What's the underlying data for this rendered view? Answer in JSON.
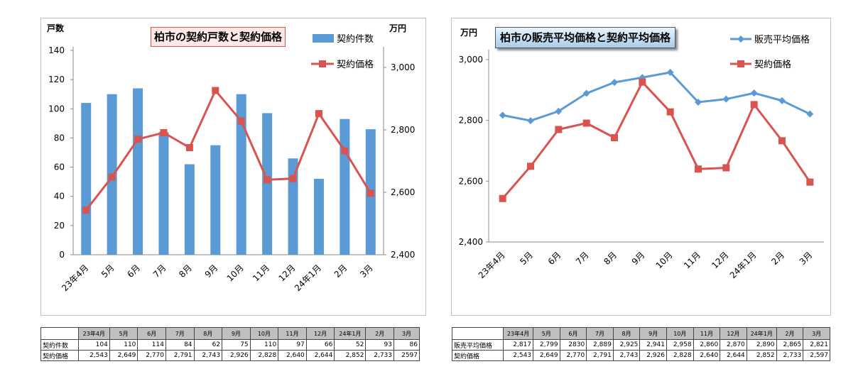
{
  "chart_data": [
    {
      "type": "bar+line",
      "title": "柏市の契約戸数と契約価格",
      "categories": [
        "23年4月",
        "5月",
        "6月",
        "7月",
        "8月",
        "9月",
        "10月",
        "11月",
        "12月",
        "24年1月",
        "2月",
        "3月"
      ],
      "y_left_label": "戸数",
      "y_right_label": "万円",
      "y_left_lim": [
        0,
        140
      ],
      "y_left_ticks": [
        "0",
        "20",
        "40",
        "60",
        "80",
        "100",
        "120",
        "140"
      ],
      "y_right_lim": [
        2400,
        3000
      ],
      "y_right_ticks": [
        "2,400",
        "2,600",
        "2,800",
        "3,000"
      ],
      "series": [
        {
          "name": "契約件数",
          "kind": "bar",
          "axis": "left",
          "color": "#5b9bd5",
          "values": [
            104,
            110,
            114,
            84,
            62,
            75,
            110,
            97,
            66,
            52,
            93,
            86
          ]
        },
        {
          "name": "契約価格",
          "kind": "line",
          "axis": "right",
          "color": "#d9534f",
          "values": [
            2543,
            2649,
            2770,
            2791,
            2743,
            2926,
            2828,
            2640,
            2644,
            2852,
            2733,
            2597
          ]
        }
      ],
      "legend": "top-right"
    },
    {
      "type": "line",
      "title": "柏市の販売平均価格と契約平均価格",
      "categories": [
        "23年4月",
        "5月",
        "6月",
        "7月",
        "8月",
        "9月",
        "10月",
        "11月",
        "12月",
        "24年1月",
        "2月",
        "3月"
      ],
      "y_label": "万円",
      "ylim": [
        2400,
        3000
      ],
      "y_ticks": [
        "2,400",
        "2,600",
        "2,800",
        "3,000"
      ],
      "series": [
        {
          "name": "販売平均価格",
          "color": "#5b9bd5",
          "marker": "diamond",
          "values": [
            2817,
            2799,
            2830,
            2889,
            2925,
            2941,
            2958,
            2860,
            2870,
            2890,
            2865,
            2821
          ]
        },
        {
          "name": "契約価格",
          "color": "#d9534f",
          "marker": "square",
          "values": [
            2543,
            2649,
            2770,
            2791,
            2743,
            2926,
            2828,
            2640,
            2644,
            2852,
            2733,
            2597
          ]
        }
      ],
      "legend": "top-right"
    }
  ],
  "tables": [
    {
      "headers": [
        "23年4月",
        "5月",
        "6月",
        "7月",
        "8月",
        "9月",
        "10月",
        "11月",
        "12月",
        "24年1月",
        "2月",
        "3月"
      ],
      "rows": [
        {
          "label": "契約件数",
          "values": [
            "104",
            "110",
            "114",
            "84",
            "62",
            "75",
            "110",
            "97",
            "66",
            "52",
            "93",
            "86"
          ]
        },
        {
          "label": "契約価格",
          "values": [
            "2,543",
            "2,649",
            "2,770",
            "2,791",
            "2,743",
            "2,926",
            "2,828",
            "2,640",
            "2,644",
            "2,852",
            "2,733",
            "2597"
          ]
        }
      ]
    },
    {
      "headers": [
        "23年4月",
        "5月",
        "6月",
        "7月",
        "8月",
        "9月",
        "10月",
        "11月",
        "12月",
        "24年1月",
        "2月",
        "3月"
      ],
      "rows": [
        {
          "label": "販売平均価格",
          "values": [
            "2,817",
            "2,799",
            "2830",
            "2,889",
            "2,925",
            "2,941",
            "2,958",
            "2,860",
            "2,870",
            "2,890",
            "2,865",
            "2,821"
          ]
        },
        {
          "label": "契約価格",
          "values": [
            "2,543",
            "2,649",
            "2,770",
            "2,791",
            "2,743",
            "2,926",
            "2,828",
            "2,640",
            "2,644",
            "2,852",
            "2,733",
            "2,597"
          ]
        }
      ]
    }
  ]
}
